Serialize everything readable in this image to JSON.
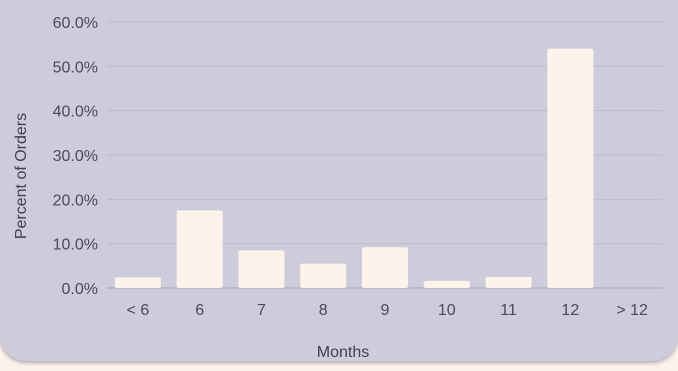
{
  "chart_data": {
    "type": "bar",
    "title": "",
    "xlabel": "Months",
    "ylabel": "Percent of Orders",
    "categories": [
      "< 6",
      "6",
      "7",
      "8",
      "9",
      "10",
      "11",
      "12",
      "> 12"
    ],
    "values": [
      2.4,
      17.5,
      8.5,
      5.5,
      9.2,
      1.6,
      2.5,
      54.0,
      0.0
    ],
    "ylim": [
      0,
      60
    ],
    "yticks": [
      0,
      10,
      20,
      30,
      40,
      50,
      60
    ],
    "ytick_labels": [
      "0.0%",
      "10.0%",
      "20.0%",
      "30.0%",
      "40.0%",
      "50.0%",
      "60.0%"
    ],
    "grid": true,
    "legend": "none"
  },
  "colors": {
    "page_background": "#fdf3ea",
    "plot_background": "#ccccdb",
    "bar": "#fdf3ea",
    "gridline": "#bdbdd0",
    "text": "#4a4a58"
  }
}
